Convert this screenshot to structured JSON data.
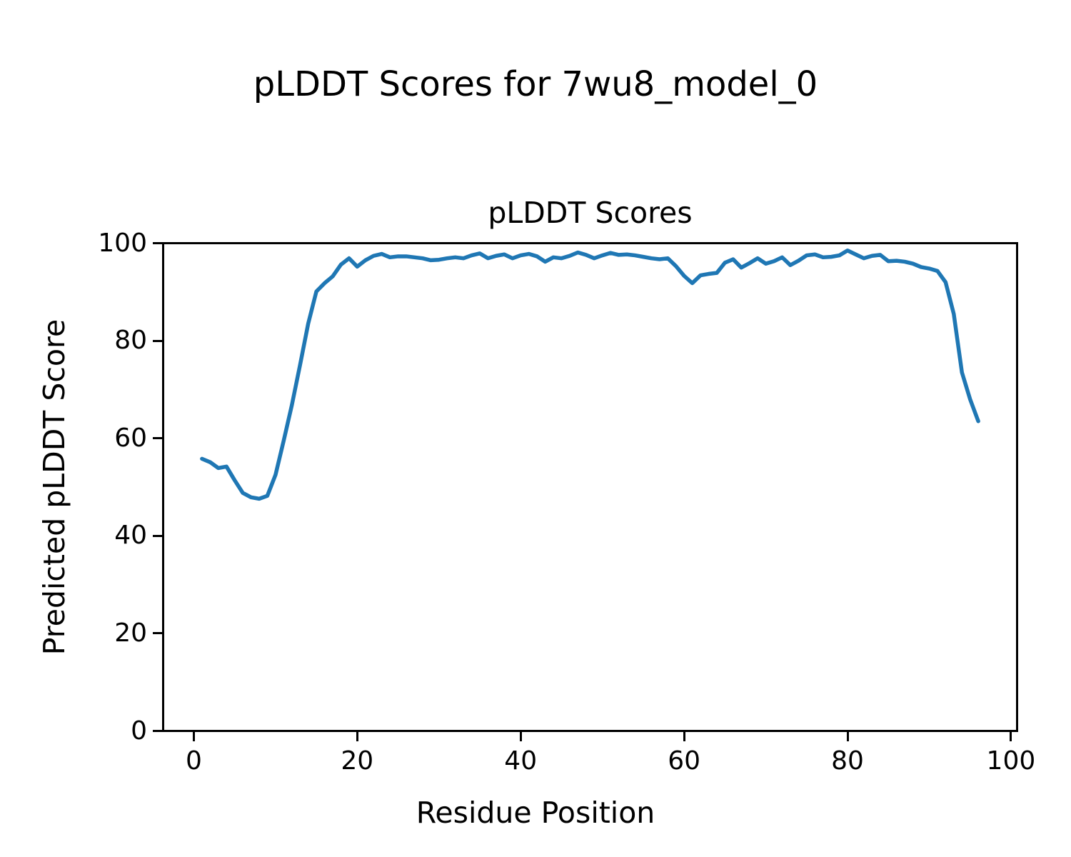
{
  "figure": {
    "suptitle": "pLDDT Scores for 7wu8_model_0",
    "background": "#ffffff",
    "text_color": "#000000"
  },
  "chart_data": {
    "type": "line",
    "title": "pLDDT Scores",
    "xlabel": "Residue Position",
    "ylabel": "Predicted pLDDT Score",
    "legend": "none",
    "grid": false,
    "line_color": "#1f77b4",
    "line_width": 5.5,
    "xlim": [
      -3.75,
      100.75
    ],
    "ylim": [
      0,
      100
    ],
    "xticks": [
      0,
      20,
      40,
      60,
      80,
      100
    ],
    "yticks": [
      0,
      20,
      40,
      60,
      80,
      100
    ],
    "series": [
      {
        "name": "pLDDT",
        "x_start": 1,
        "x_step": 1,
        "values": [
          55.8,
          55.1,
          53.9,
          54.2,
          51.4,
          48.8,
          47.9,
          47.6,
          48.2,
          52.5,
          59.5,
          66.8,
          75.0,
          83.5,
          90.1,
          91.8,
          93.2,
          95.6,
          96.9,
          95.2,
          96.5,
          97.4,
          97.8,
          97.1,
          97.3,
          97.3,
          97.1,
          96.9,
          96.5,
          96.6,
          96.9,
          97.1,
          96.9,
          97.5,
          97.9,
          96.9,
          97.4,
          97.7,
          96.9,
          97.5,
          97.8,
          97.3,
          96.2,
          97.1,
          96.9,
          97.4,
          98.1,
          97.6,
          96.9,
          97.5,
          98.0,
          97.6,
          97.7,
          97.5,
          97.2,
          96.9,
          96.7,
          96.9,
          95.3,
          93.3,
          91.8,
          93.4,
          93.7,
          93.9,
          96.0,
          96.7,
          95.0,
          95.9,
          96.9,
          95.8,
          96.3,
          97.1,
          95.5,
          96.4,
          97.5,
          97.7,
          97.1,
          97.2,
          97.5,
          98.5,
          97.7,
          96.9,
          97.4,
          97.6,
          96.3,
          96.4,
          96.2,
          95.8,
          95.1,
          94.8,
          94.3,
          92.0,
          85.5,
          73.5,
          68.0,
          63.5
        ]
      }
    ]
  }
}
